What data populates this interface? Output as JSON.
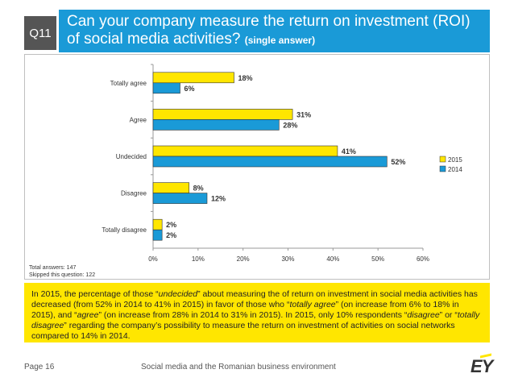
{
  "header": {
    "question_id": "Q11",
    "title_line1": "Can your company measure the return on investment (ROI)",
    "title_line2": "of social media activities?",
    "title_note": "(single answer)"
  },
  "notes": {
    "total_answers": "Total answers: 147",
    "skipped": "Skipped this question: 122"
  },
  "summary": {
    "p1": "In 2015, the percentage of those “",
    "p2": "undecided",
    "p3": "” about measuring the of return on investment in social media activities has decreased (from 52% in 2014 to 41% in 2015) in favor of those who “",
    "p4": "totally agree",
    "p5": "” (on increase from 6% to 18% in 2015), and “",
    "p6": "agree",
    "p7": "” (on increase from 28% in 2014 to 31% in 2015). In 2015, only 10% respondents “",
    "p8": "disagree",
    "p9": "” or “",
    "p10": "totally disagree",
    "p11": "” regarding the company’s possibility to measure the return on investment of activities on social networks compared to 14% in 2014."
  },
  "footer": {
    "page": "Page 16",
    "title": "Social media and the Romanian business environment",
    "logo": "EY"
  },
  "chart_data": {
    "type": "bar",
    "orientation": "horizontal",
    "categories": [
      "Totally agree",
      "Agree",
      "Undecided",
      "Disagree",
      "Totally disagree"
    ],
    "series": [
      {
        "name": "2015",
        "values": [
          18,
          31,
          41,
          8,
          2
        ],
        "color": "#ffe600"
      },
      {
        "name": "2014",
        "values": [
          6,
          28,
          52,
          12,
          2
        ],
        "color": "#1a9ad7"
      }
    ],
    "xlim": [
      0,
      60
    ],
    "xticks": [
      "0%",
      "10%",
      "20%",
      "30%",
      "40%",
      "50%",
      "60%"
    ],
    "value_suffix": "%",
    "legend": "right",
    "grid": false
  }
}
